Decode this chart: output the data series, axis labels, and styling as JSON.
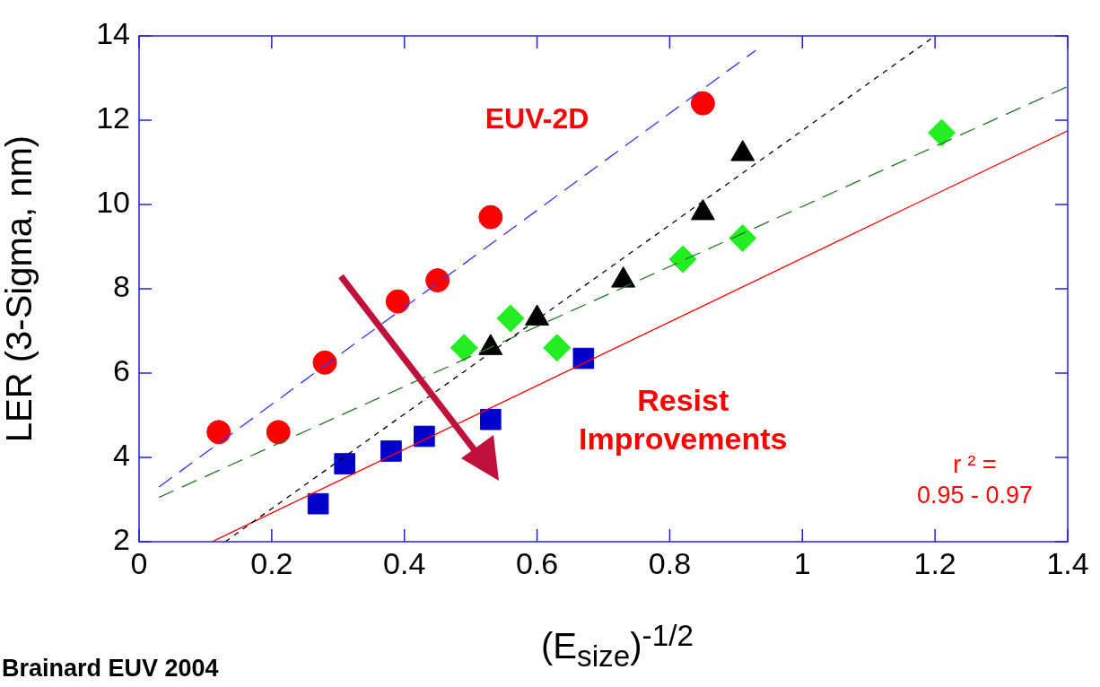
{
  "chart_data": {
    "type": "scatter",
    "xlabel": "(E$_{size}$)$^{-1/2}$",
    "ylabel": "LER (3-Sigma, nm)",
    "xlim": [
      0,
      1.4
    ],
    "xticks": [
      0,
      0.2,
      0.4,
      0.6,
      0.8,
      1,
      1.2,
      1.4
    ],
    "ylim": [
      2,
      14
    ],
    "yticks": [
      2,
      4,
      6,
      8,
      10,
      12,
      14
    ],
    "grid": false,
    "legend": false,
    "series": [
      {
        "type": "line",
        "color": "#3333ff",
        "line_style": "dashed",
        "marker": "none",
        "x": [
          0.03,
          0.93
        ],
        "values": [
          3.3,
          13.66
        ]
      },
      {
        "type": "line",
        "color": "#000000",
        "line_style": "dotted",
        "marker": "none",
        "x": [
          0.13,
          1.2
        ],
        "values": [
          2,
          14
        ]
      },
      {
        "type": "line",
        "color": "#227722",
        "line_style": "dashed",
        "marker": "none",
        "x": [
          0.03,
          1.4
        ],
        "values": [
          3.05,
          12.8
        ]
      },
      {
        "type": "line",
        "color": "#ff0000",
        "line_style": "solid",
        "marker": "none",
        "x": [
          0.11,
          1.4
        ],
        "values": [
          2,
          11.75
        ]
      },
      {
        "type": "scatter",
        "color": "#ff0000",
        "marker": "circle",
        "x": [
          0.12,
          0.21,
          0.28,
          0.39,
          0.45,
          0.53,
          0.85
        ],
        "values": [
          4.6,
          4.6,
          6.25,
          7.7,
          8.2,
          9.7,
          12.4
        ]
      },
      {
        "type": "scatter",
        "color": "#000000",
        "marker": "triangle",
        "x": [
          0.53,
          0.6,
          0.73,
          0.85,
          0.91
        ],
        "values": [
          6.6,
          7.3,
          8.2,
          9.8,
          11.2
        ]
      },
      {
        "type": "scatter",
        "color": "#22ee22",
        "marker": "diamond",
        "x": [
          0.49,
          0.56,
          0.63,
          0.82,
          0.91,
          1.21
        ],
        "values": [
          6.6,
          7.3,
          6.6,
          8.7,
          9.2,
          11.7
        ]
      },
      {
        "type": "scatter",
        "color": "#0000cc",
        "marker": "square",
        "x": [
          0.27,
          0.31,
          0.38,
          0.43,
          0.53,
          0.67
        ],
        "values": [
          2.9,
          3.85,
          4.15,
          4.5,
          4.9,
          6.35
        ]
      }
    ],
    "annotations": [
      "EUV-2D",
      "Resist\nImprovements",
      "r ² =\n0.95 - 0.97",
      "Brainard EUV 2004"
    ]
  }
}
